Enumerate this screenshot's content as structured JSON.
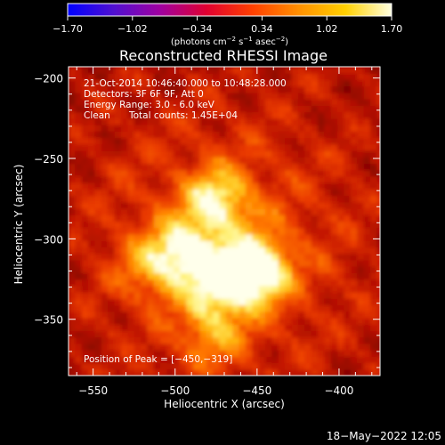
{
  "colorbar": {
    "ticks": [
      "−1.70",
      "−1.02",
      "−0.34",
      "0.34",
      "1.02",
      "1.70"
    ],
    "tick_values": [
      -1.7,
      -1.02,
      -0.34,
      0.34,
      1.02,
      1.7
    ],
    "range": [
      -1.7,
      1.7
    ],
    "units_pre": "(photons cm",
    "units_exp1": "−2",
    "units_mid": " s",
    "units_exp2": "−1",
    "units_mid2": " asec",
    "units_exp3": "−2",
    "units_post": ")",
    "colors": [
      "#0000ff",
      "#5010d0",
      "#a000a0",
      "#e00030",
      "#ff4000",
      "#ff9000",
      "#ffd000",
      "#ffffe0"
    ]
  },
  "chart_data": {
    "type": "heatmap",
    "title": "Reconstructed RHESSI Image",
    "xlabel": "Heliocentric X (arcsec)",
    "ylabel": "Heliocentric Y (arcsec)",
    "xlim": [
      -565,
      -375
    ],
    "ylim": [
      -385,
      -193
    ],
    "x_ticks": [
      -550,
      -500,
      -450,
      -400
    ],
    "y_ticks": [
      -200,
      -250,
      -300,
      -350
    ],
    "x_tick_labels": [
      "−550",
      "−500",
      "−450",
      "−400"
    ],
    "y_tick_labels": [
      "−200",
      "−250",
      "−300",
      "−350"
    ],
    "sources": [
      {
        "x": -450,
        "y": -319,
        "strength": 1.0
      },
      {
        "x": -493,
        "y": -308,
        "strength": 0.78
      },
      {
        "x": -474,
        "y": -276,
        "strength": 0.72
      },
      {
        "x": -472,
        "y": -330,
        "strength": 0.62
      },
      {
        "x": -478,
        "y": -360,
        "strength": 0.45
      },
      {
        "x": -515,
        "y": -318,
        "strength": 0.4
      }
    ],
    "peak": {
      "x": -450,
      "y": -319
    }
  },
  "annotations": {
    "time": "21-Oct-2014 10:46:40.000 to 10:48:28.000",
    "detectors": "Detectors: 3F 6F 9F, Att 0",
    "energy": "Energy Range: 3.0 - 6.0 keV",
    "clean_label": "Clean",
    "counts": "Total counts: 1.45E+04",
    "peak_label": "Position of Peak = [−450,−319]"
  },
  "footer": {
    "date": "18−May−2022 12:05"
  }
}
